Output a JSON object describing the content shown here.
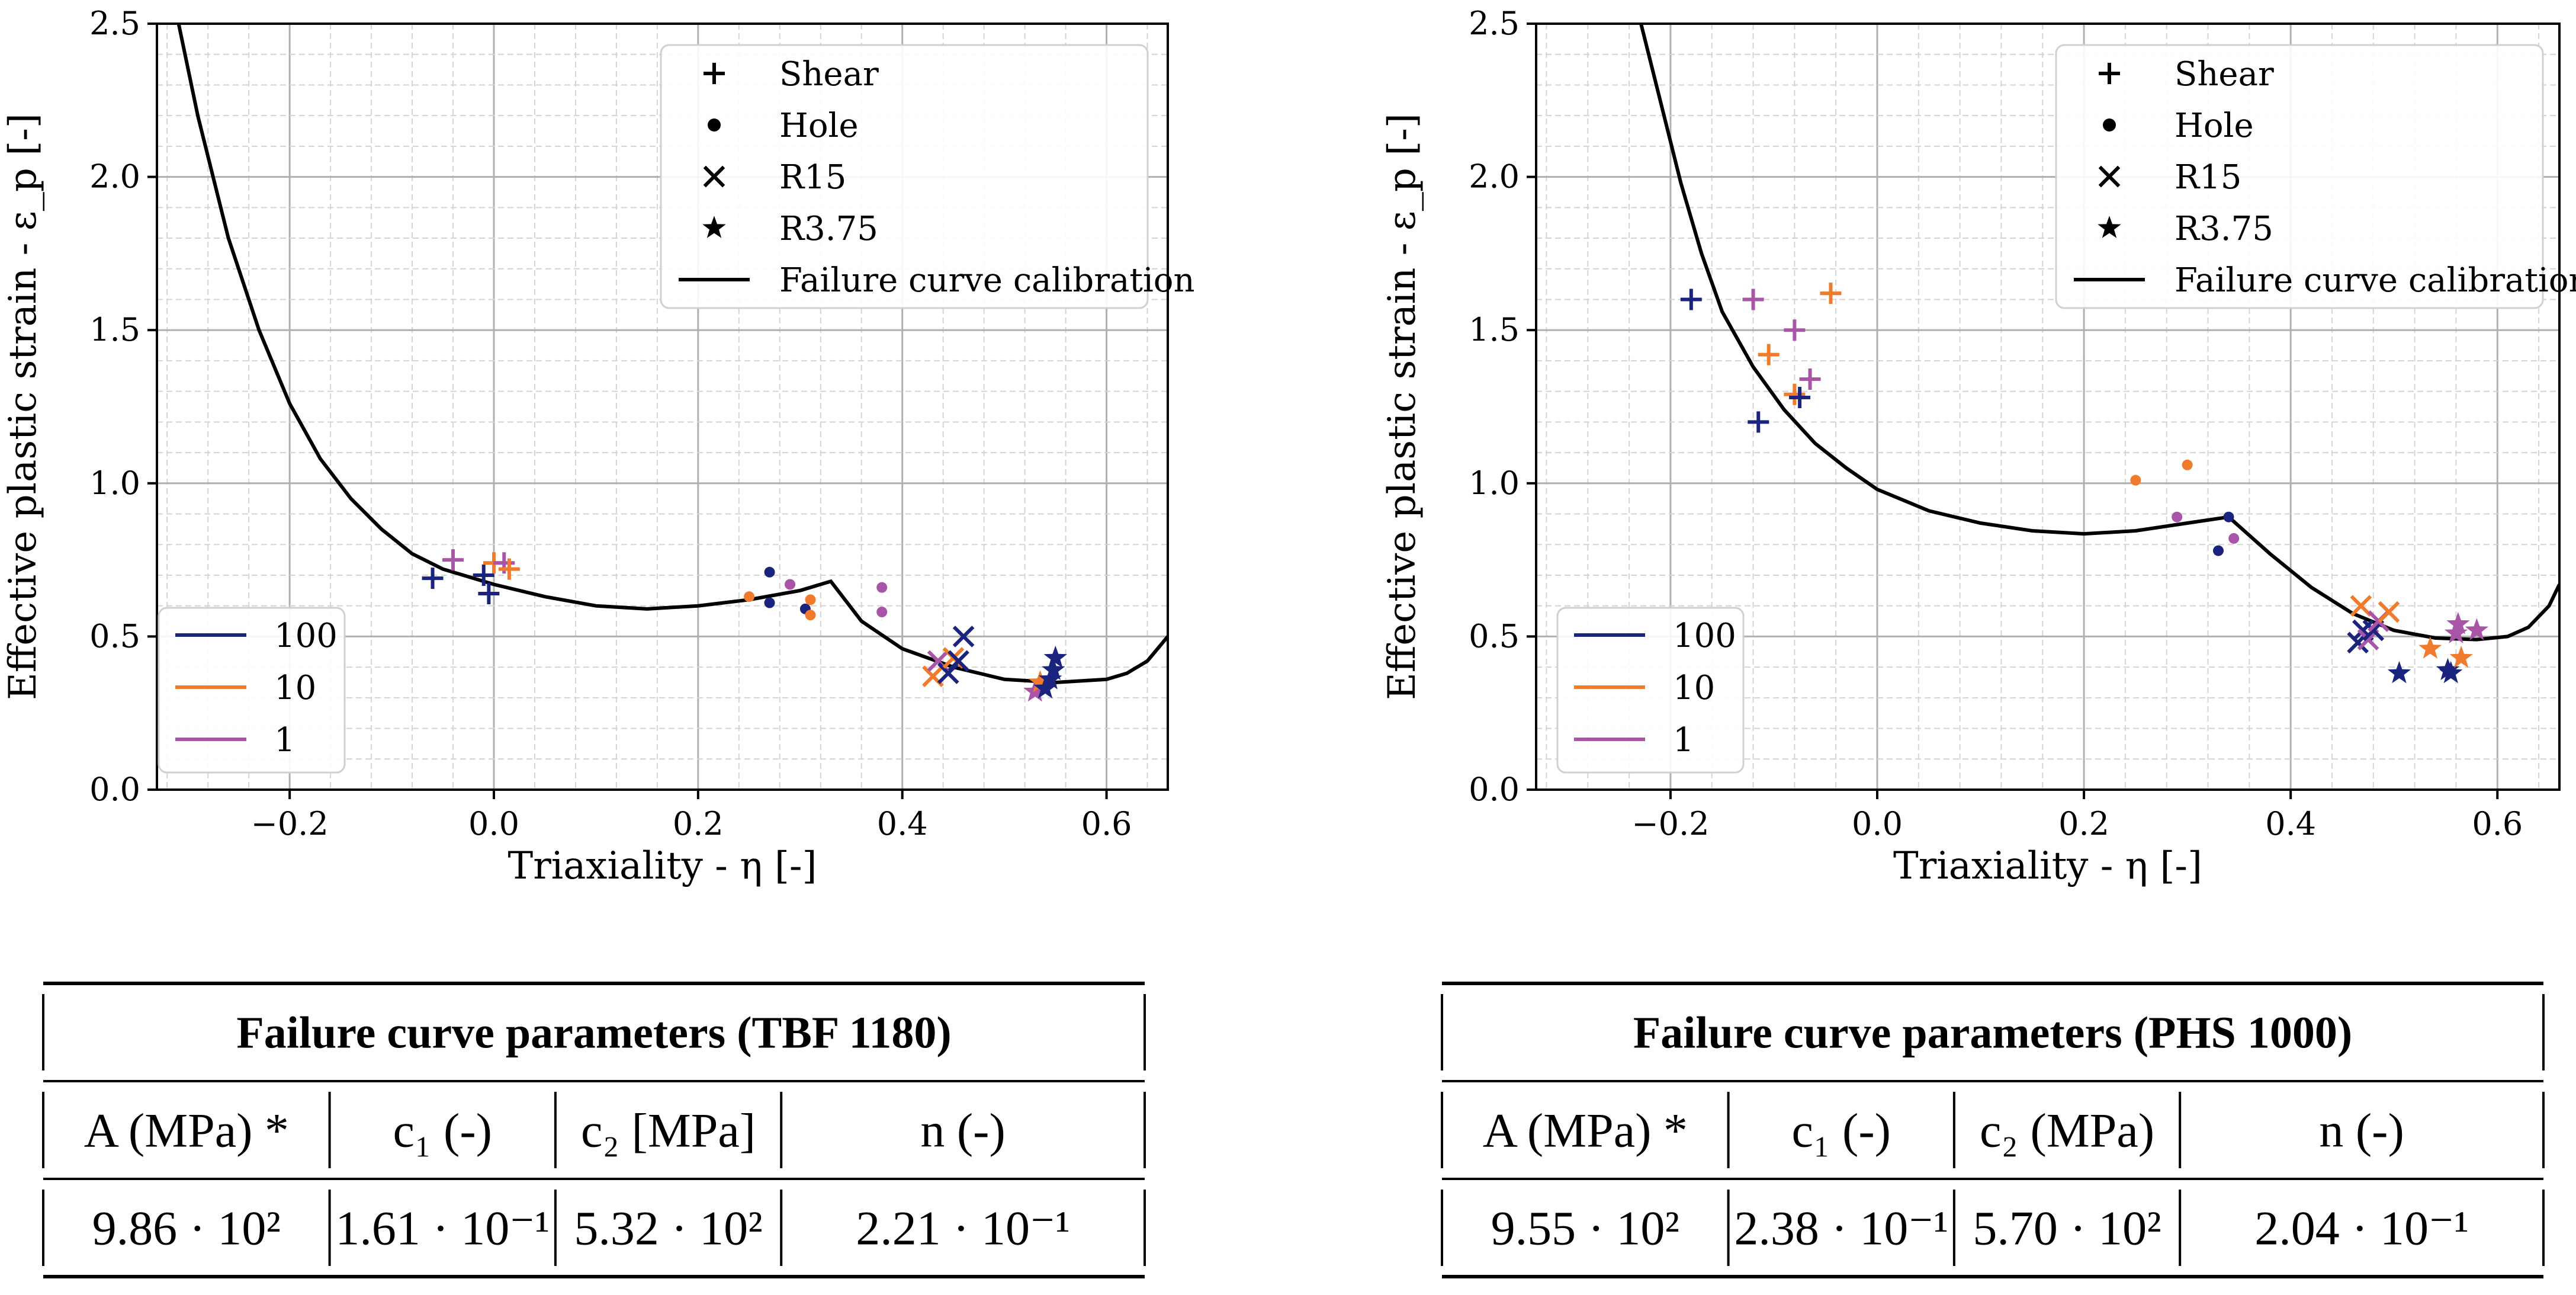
{
  "colors": {
    "rate_100": "#1a237e",
    "rate_10": "#f07b2c",
    "rate_1": "#a855a8",
    "curve": "#000000",
    "grid_major": "#b0b0b0",
    "grid_minor": "#d4d4d4"
  },
  "chart_data": [
    {
      "type": "scatter",
      "id": "tbf1180",
      "xlabel": "Triaxiality - η [-]",
      "ylabel": "Effective plastic strain - ε_p [-]",
      "xlim": [
        -0.33,
        0.66
      ],
      "ylim": [
        0.0,
        2.5
      ],
      "xticks": [
        -0.2,
        0.0,
        0.2,
        0.4,
        0.6
      ],
      "xtick_labels": [
        "−0.2",
        "0.0",
        "0.2",
        "0.4",
        "0.6"
      ],
      "yticks": [
        0.0,
        0.5,
        1.0,
        1.5,
        2.0,
        2.5
      ],
      "ytick_labels": [
        "0.0",
        "0.5",
        "1.0",
        "1.5",
        "2.0",
        "2.5"
      ],
      "grid": true,
      "legend_markers": {
        "placement": "top-right",
        "entries": [
          {
            "marker": "plus",
            "label": "Shear"
          },
          {
            "marker": "dot",
            "label": "Hole"
          },
          {
            "marker": "x",
            "label": "R15"
          },
          {
            "marker": "star",
            "label": "R3.75"
          },
          {
            "marker": "line",
            "label": "Failure curve calibration"
          }
        ]
      },
      "legend_rates": {
        "placement": "bottom-left",
        "entries": [
          {
            "rate": "100",
            "label": "100"
          },
          {
            "rate": "10",
            "label": "10"
          },
          {
            "rate": "1",
            "label": "1"
          }
        ]
      },
      "failure_curve": {
        "x": [
          -0.31,
          -0.29,
          -0.26,
          -0.23,
          -0.2,
          -0.17,
          -0.14,
          -0.11,
          -0.08,
          -0.05,
          -0.02,
          0.0,
          0.05,
          0.1,
          0.15,
          0.2,
          0.25,
          0.3,
          0.33,
          0.36,
          0.4,
          0.45,
          0.5,
          0.55,
          0.6,
          0.62,
          0.64,
          0.66
        ],
        "y": [
          2.52,
          2.2,
          1.8,
          1.5,
          1.26,
          1.08,
          0.95,
          0.85,
          0.77,
          0.72,
          0.69,
          0.67,
          0.63,
          0.6,
          0.59,
          0.6,
          0.62,
          0.65,
          0.68,
          0.55,
          0.46,
          0.4,
          0.36,
          0.35,
          0.36,
          0.38,
          0.42,
          0.5
        ]
      },
      "points": [
        {
          "x": -0.06,
          "y": 0.69,
          "marker": "plus",
          "rate": "100"
        },
        {
          "x": -0.04,
          "y": 0.75,
          "marker": "plus",
          "rate": "1"
        },
        {
          "x": -0.01,
          "y": 0.7,
          "marker": "plus",
          "rate": "100"
        },
        {
          "x": -0.005,
          "y": 0.64,
          "marker": "plus",
          "rate": "100"
        },
        {
          "x": 0.0,
          "y": 0.74,
          "marker": "plus",
          "rate": "10"
        },
        {
          "x": 0.01,
          "y": 0.74,
          "marker": "plus",
          "rate": "1"
        },
        {
          "x": 0.015,
          "y": 0.72,
          "marker": "plus",
          "rate": "10"
        },
        {
          "x": 0.25,
          "y": 0.63,
          "marker": "dot",
          "rate": "10"
        },
        {
          "x": 0.27,
          "y": 0.71,
          "marker": "dot",
          "rate": "100"
        },
        {
          "x": 0.27,
          "y": 0.61,
          "marker": "dot",
          "rate": "100"
        },
        {
          "x": 0.29,
          "y": 0.67,
          "marker": "dot",
          "rate": "1"
        },
        {
          "x": 0.305,
          "y": 0.59,
          "marker": "dot",
          "rate": "100"
        },
        {
          "x": 0.31,
          "y": 0.62,
          "marker": "dot",
          "rate": "10"
        },
        {
          "x": 0.31,
          "y": 0.57,
          "marker": "dot",
          "rate": "10"
        },
        {
          "x": 0.38,
          "y": 0.66,
          "marker": "dot",
          "rate": "1"
        },
        {
          "x": 0.38,
          "y": 0.58,
          "marker": "dot",
          "rate": "1"
        },
        {
          "x": 0.43,
          "y": 0.37,
          "marker": "x",
          "rate": "10"
        },
        {
          "x": 0.435,
          "y": 0.42,
          "marker": "x",
          "rate": "1"
        },
        {
          "x": 0.445,
          "y": 0.38,
          "marker": "x",
          "rate": "100"
        },
        {
          "x": 0.45,
          "y": 0.43,
          "marker": "x",
          "rate": "10"
        },
        {
          "x": 0.455,
          "y": 0.42,
          "marker": "x",
          "rate": "100"
        },
        {
          "x": 0.46,
          "y": 0.5,
          "marker": "x",
          "rate": "100"
        },
        {
          "x": 0.53,
          "y": 0.32,
          "marker": "star",
          "rate": "1"
        },
        {
          "x": 0.535,
          "y": 0.35,
          "marker": "star",
          "rate": "10"
        },
        {
          "x": 0.54,
          "y": 0.33,
          "marker": "star",
          "rate": "100"
        },
        {
          "x": 0.545,
          "y": 0.36,
          "marker": "star",
          "rate": "100"
        },
        {
          "x": 0.548,
          "y": 0.39,
          "marker": "star",
          "rate": "100"
        },
        {
          "x": 0.55,
          "y": 0.43,
          "marker": "star",
          "rate": "100"
        }
      ]
    },
    {
      "type": "scatter",
      "id": "phs1000",
      "xlabel": "Triaxiality - η [-]",
      "ylabel": "Effective plastic strain - ε_p [-]",
      "xlim": [
        -0.33,
        0.66
      ],
      "ylim": [
        0.0,
        2.5
      ],
      "xticks": [
        -0.2,
        0.0,
        0.2,
        0.4,
        0.6
      ],
      "xtick_labels": [
        "−0.2",
        "0.0",
        "0.2",
        "0.4",
        "0.6"
      ],
      "yticks": [
        0.0,
        0.5,
        1.0,
        1.5,
        2.0,
        2.5
      ],
      "ytick_labels": [
        "0.0",
        "0.5",
        "1.0",
        "1.5",
        "2.0",
        "2.5"
      ],
      "grid": true,
      "legend_markers": {
        "placement": "top-right",
        "entries": [
          {
            "marker": "plus",
            "label": "Shear"
          },
          {
            "marker": "dot",
            "label": "Hole"
          },
          {
            "marker": "x",
            "label": "R15"
          },
          {
            "marker": "star",
            "label": "R3.75"
          },
          {
            "marker": "line",
            "label": "Failure curve calibration"
          }
        ]
      },
      "legend_rates": {
        "placement": "bottom-left",
        "entries": [
          {
            "rate": "100",
            "label": "100"
          },
          {
            "rate": "10",
            "label": "10"
          },
          {
            "rate": "1",
            "label": "1"
          }
        ]
      },
      "failure_curve": {
        "x": [
          -0.23,
          -0.21,
          -0.19,
          -0.17,
          -0.15,
          -0.12,
          -0.09,
          -0.06,
          -0.03,
          0.0,
          0.05,
          0.1,
          0.15,
          0.2,
          0.25,
          0.3,
          0.34,
          0.38,
          0.42,
          0.46,
          0.5,
          0.54,
          0.58,
          0.61,
          0.63,
          0.65,
          0.66
        ],
        "y": [
          2.52,
          2.25,
          1.98,
          1.75,
          1.56,
          1.38,
          1.24,
          1.13,
          1.05,
          0.98,
          0.91,
          0.87,
          0.845,
          0.835,
          0.845,
          0.87,
          0.89,
          0.77,
          0.66,
          0.575,
          0.52,
          0.495,
          0.49,
          0.5,
          0.53,
          0.6,
          0.67
        ]
      },
      "points": [
        {
          "x": -0.18,
          "y": 1.6,
          "marker": "plus",
          "rate": "100"
        },
        {
          "x": -0.12,
          "y": 1.6,
          "marker": "plus",
          "rate": "1"
        },
        {
          "x": -0.115,
          "y": 1.2,
          "marker": "plus",
          "rate": "100"
        },
        {
          "x": -0.105,
          "y": 1.42,
          "marker": "plus",
          "rate": "10"
        },
        {
          "x": -0.08,
          "y": 1.5,
          "marker": "plus",
          "rate": "1"
        },
        {
          "x": -0.08,
          "y": 1.29,
          "marker": "plus",
          "rate": "10"
        },
        {
          "x": -0.075,
          "y": 1.28,
          "marker": "plus",
          "rate": "100"
        },
        {
          "x": -0.065,
          "y": 1.34,
          "marker": "plus",
          "rate": "1"
        },
        {
          "x": -0.045,
          "y": 1.62,
          "marker": "plus",
          "rate": "10"
        },
        {
          "x": 0.25,
          "y": 1.01,
          "marker": "dot",
          "rate": "10"
        },
        {
          "x": 0.29,
          "y": 0.89,
          "marker": "dot",
          "rate": "1"
        },
        {
          "x": 0.3,
          "y": 1.06,
          "marker": "dot",
          "rate": "10"
        },
        {
          "x": 0.33,
          "y": 0.78,
          "marker": "dot",
          "rate": "100"
        },
        {
          "x": 0.34,
          "y": 0.89,
          "marker": "dot",
          "rate": "100"
        },
        {
          "x": 0.345,
          "y": 0.82,
          "marker": "dot",
          "rate": "1"
        },
        {
          "x": 0.465,
          "y": 0.48,
          "marker": "x",
          "rate": "100"
        },
        {
          "x": 0.468,
          "y": 0.6,
          "marker": "x",
          "rate": "10"
        },
        {
          "x": 0.47,
          "y": 0.52,
          "marker": "x",
          "rate": "100"
        },
        {
          "x": 0.475,
          "y": 0.49,
          "marker": "x",
          "rate": "1"
        },
        {
          "x": 0.48,
          "y": 0.52,
          "marker": "x",
          "rate": "100"
        },
        {
          "x": 0.485,
          "y": 0.55,
          "marker": "x",
          "rate": "1"
        },
        {
          "x": 0.495,
          "y": 0.58,
          "marker": "x",
          "rate": "10"
        },
        {
          "x": 0.505,
          "y": 0.38,
          "marker": "star",
          "rate": "100"
        },
        {
          "x": 0.535,
          "y": 0.46,
          "marker": "star",
          "rate": "10"
        },
        {
          "x": 0.552,
          "y": 0.39,
          "marker": "star",
          "rate": "100"
        },
        {
          "x": 0.555,
          "y": 0.38,
          "marker": "star",
          "rate": "100"
        },
        {
          "x": 0.56,
          "y": 0.51,
          "marker": "star",
          "rate": "1"
        },
        {
          "x": 0.562,
          "y": 0.54,
          "marker": "star",
          "rate": "1"
        },
        {
          "x": 0.565,
          "y": 0.43,
          "marker": "star",
          "rate": "10"
        },
        {
          "x": 0.58,
          "y": 0.52,
          "marker": "star",
          "rate": "1"
        }
      ]
    }
  ],
  "tables": [
    {
      "title": "Failure curve parameters (TBF 1180)",
      "headers": [
        "A (MPa) *",
        "c₁ (-)",
        "c₂ [MPa]",
        "n (-)"
      ],
      "values": [
        "9.86 · 10²",
        "1.61 · 10⁻¹",
        "5.32 · 10²",
        "2.21 · 10⁻¹"
      ]
    },
    {
      "title": "Failure curve parameters (PHS 1000)",
      "headers": [
        "A (MPa) *",
        "c₁ (-)",
        "c₂ (MPa)",
        "n (-)"
      ],
      "values": [
        "9.55 · 10²",
        "2.38 · 10⁻¹",
        "5.70 · 10²",
        "2.04 · 10⁻¹"
      ]
    }
  ]
}
